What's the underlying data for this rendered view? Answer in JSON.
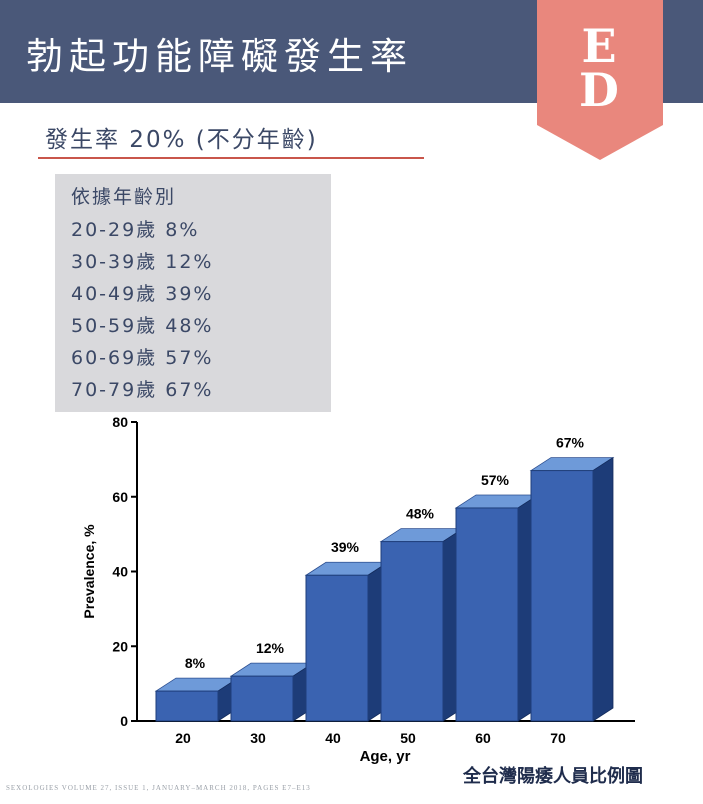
{
  "header": {
    "title": "勃起功能障礙發生率",
    "badge_top": "E",
    "badge_bottom": "D"
  },
  "subtitle": "發生率 20% (不分年齡)",
  "age_box": {
    "heading": "依據年齡別",
    "rows": [
      "20-29歲 8%",
      "30-39歲 12%",
      "40-49歲 39%",
      "50-59歲 48%",
      "60-69歲 57%",
      "70-79歲 67%"
    ]
  },
  "chart_data": {
    "type": "bar",
    "categories": [
      "20",
      "30",
      "40",
      "50",
      "60",
      "70"
    ],
    "values": [
      8,
      12,
      39,
      48,
      57,
      67
    ],
    "data_labels": [
      "8%",
      "12%",
      "39%",
      "48%",
      "57%",
      "67%"
    ],
    "title": "",
    "xlabel": "Age, yr",
    "ylabel": "Prevalence, %",
    "ylim": [
      0,
      80
    ],
    "yticks": [
      0,
      20,
      40,
      60,
      80
    ],
    "grid": false,
    "style": "3d",
    "colors": {
      "front": "#3a63b1",
      "top": "#6e9ad9",
      "side": "#1d3c78"
    }
  },
  "source": "SEXOLOGIES VOLUME 27, ISSUE 1, JANUARY–MARCH 2018, PAGES E7–E13",
  "caption": "全台灣陽痿人員比例圖",
  "colors": {
    "header_bg": "#4a5879",
    "badge": "#e9877d",
    "accent_rule": "#c9564b"
  }
}
